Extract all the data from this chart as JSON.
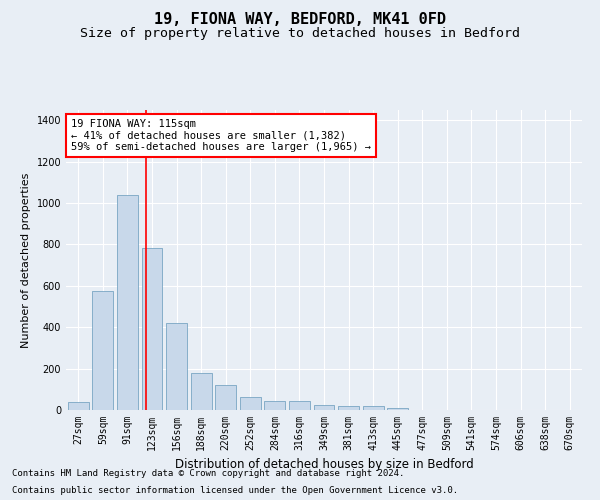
{
  "title1": "19, FIONA WAY, BEDFORD, MK41 0FD",
  "title2": "Size of property relative to detached houses in Bedford",
  "xlabel": "Distribution of detached houses by size in Bedford",
  "ylabel": "Number of detached properties",
  "footnote1": "Contains HM Land Registry data © Crown copyright and database right 2024.",
  "footnote2": "Contains public sector information licensed under the Open Government Licence v3.0.",
  "annotation_line1": "19 FIONA WAY: 115sqm",
  "annotation_line2": "← 41% of detached houses are smaller (1,382)",
  "annotation_line3": "59% of semi-detached houses are larger (1,965) →",
  "bar_labels": [
    "27sqm",
    "59sqm",
    "91sqm",
    "123sqm",
    "156sqm",
    "188sqm",
    "220sqm",
    "252sqm",
    "284sqm",
    "316sqm",
    "349sqm",
    "381sqm",
    "413sqm",
    "445sqm",
    "477sqm",
    "509sqm",
    "541sqm",
    "574sqm",
    "606sqm",
    "638sqm",
    "670sqm"
  ],
  "bar_values": [
    40,
    575,
    1040,
    785,
    420,
    180,
    120,
    65,
    45,
    45,
    25,
    20,
    20,
    10,
    0,
    0,
    0,
    0,
    0,
    0,
    0
  ],
  "bar_color": "#c8d8ea",
  "bar_edge_color": "#6699bb",
  "red_line_x": 2.75,
  "ylim": [
    0,
    1450
  ],
  "yticks": [
    0,
    200,
    400,
    600,
    800,
    1000,
    1200,
    1400
  ],
  "background_color": "#e8eef5",
  "plot_bg_color": "#e8eef5",
  "annotation_box_color": "white",
  "annotation_box_edge": "red",
  "title_fontsize": 11,
  "subtitle_fontsize": 9.5,
  "axis_label_fontsize": 8.5,
  "tick_fontsize": 7,
  "annotation_fontsize": 7.5,
  "footnote_fontsize": 6.5,
  "ylabel_fontsize": 8
}
